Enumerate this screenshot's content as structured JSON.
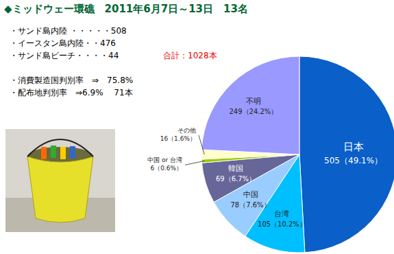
{
  "chart_data": {
    "type": "pie",
    "title": "◆ミッドウェー環礁　2011年6月7日～13日　13名",
    "annotations": [
      "・サンド島内陸 ・・・・・508",
      "・イースタン島内陸・・476",
      "・サンド島ビーチ・・・・44",
      "合計：1028本",
      "・消費製造国判別率　⇒　75.8%",
      "・配布地判別率　⇒6.9%　 71本"
    ],
    "categories": [
      "日本",
      "台湾",
      "中国",
      "韓国",
      "中国 or 台湾",
      "その他",
      "不明"
    ],
    "values": [
      505,
      105,
      78,
      69,
      6,
      16,
      249
    ],
    "value_labels": [
      "505（49.1%）",
      "105（10.2%）",
      "78（7.6%）",
      "69（6.7%）",
      "6（0.6%）",
      "16（1.6%）",
      "249（24.2%）"
    ],
    "colors": [
      "#0a5fc8",
      "#00bfff",
      "#99ccff",
      "#666699",
      "#99cc00",
      "#ffffcc",
      "#9999ff"
    ],
    "data_labels": true
  }
}
